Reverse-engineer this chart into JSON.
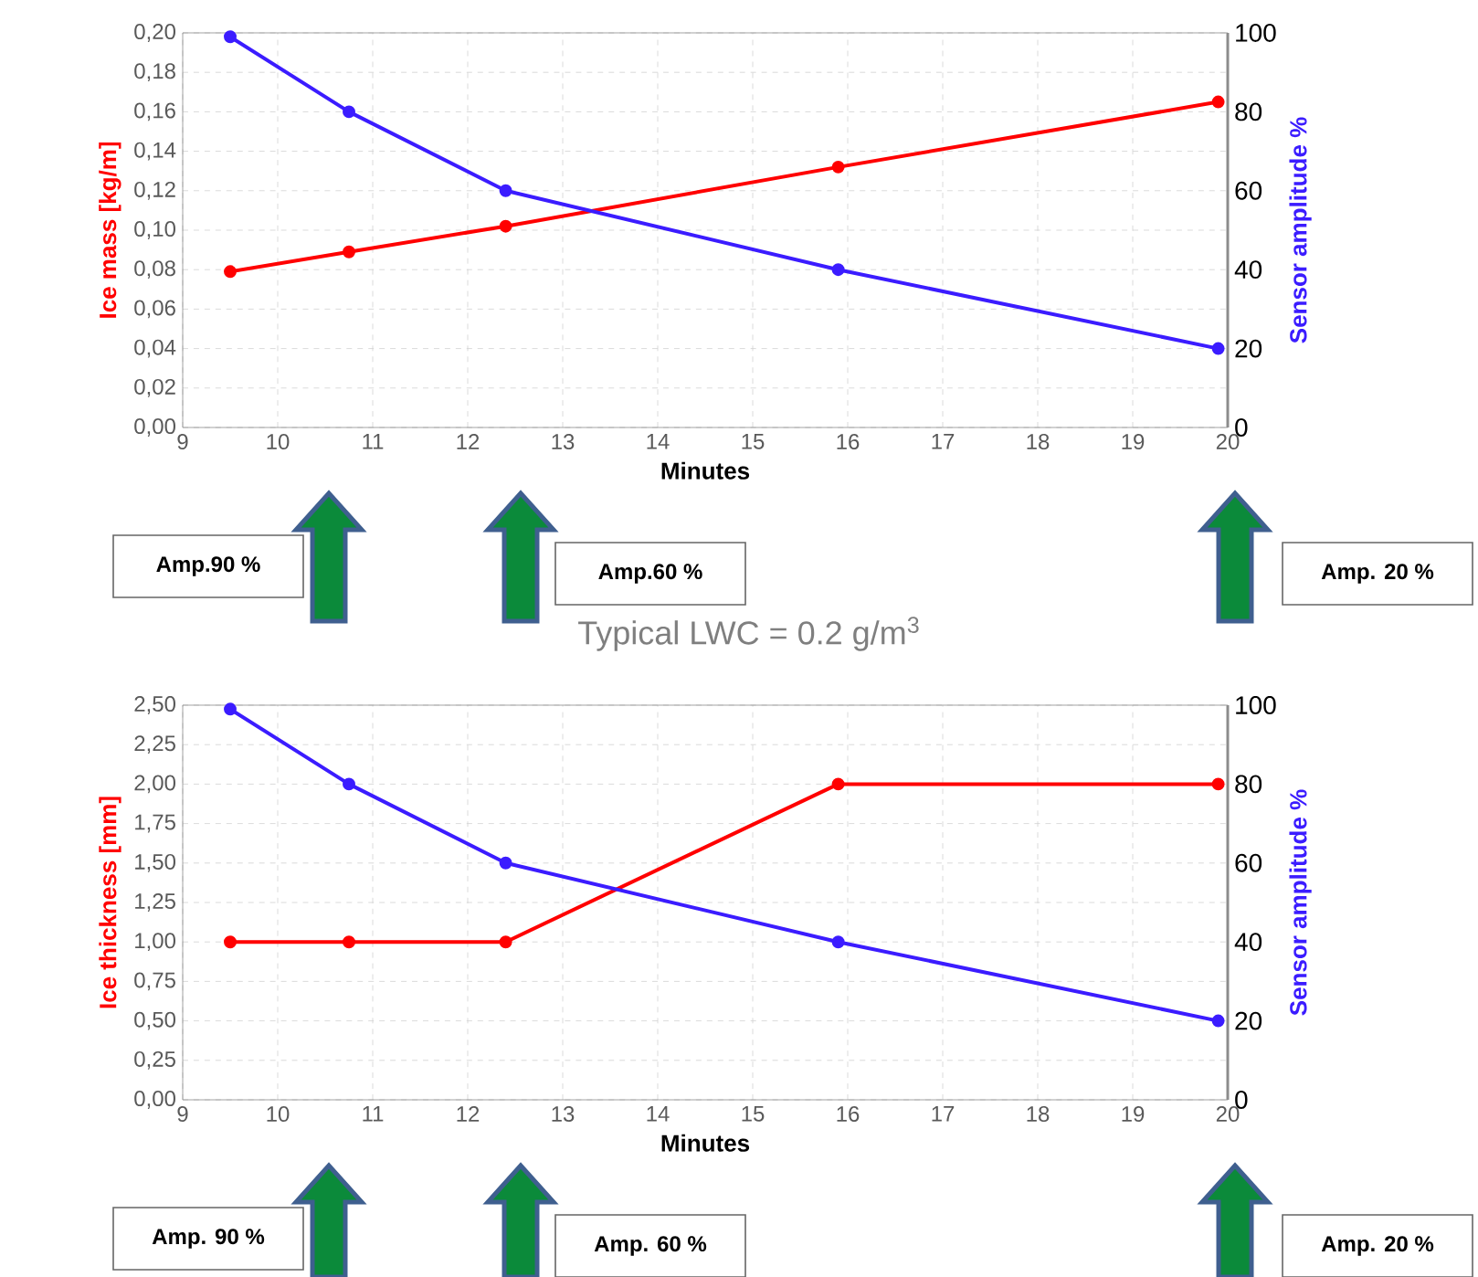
{
  "chart_data": [
    {
      "type": "line",
      "x": [
        9.5,
        10.75,
        12.4,
        15.9,
        19.9
      ],
      "xlim": [
        9,
        20
      ],
      "xticks": [
        9,
        10,
        11,
        12,
        13,
        14,
        15,
        16,
        17,
        18,
        19,
        20
      ],
      "ylim": [
        0,
        0.2
      ],
      "yticks": [
        {
          "value": 0,
          "label": "0,00"
        },
        {
          "value": 0.02,
          "label": "0,02"
        },
        {
          "value": 0.04,
          "label": "0,04"
        },
        {
          "value": 0.06,
          "label": "0,06"
        },
        {
          "value": 0.08,
          "label": "0,08"
        },
        {
          "value": 0.1,
          "label": "0,10"
        },
        {
          "value": 0.12,
          "label": "0,12"
        },
        {
          "value": 0.14,
          "label": "0,14"
        },
        {
          "value": 0.16,
          "label": "0,16"
        },
        {
          "value": 0.18,
          "label": "0,18"
        },
        {
          "value": 0.2,
          "label": "0,20"
        }
      ],
      "y2lim": [
        0,
        100
      ],
      "y2ticks": [
        0,
        20,
        40,
        60,
        80,
        100
      ],
      "xlabel": "Minutes",
      "ylabel": "Ice mass [kg/m]",
      "y2label": "Sensor amplitude %",
      "grid": true,
      "marker": "circle",
      "line_style": "solid",
      "series": [
        {
          "color": "#ff0000",
          "values": [
            0.079,
            0.089,
            0.102,
            0.132,
            0.165
          ]
        },
        {
          "color": "#3b1cff",
          "axis": "y2",
          "values": [
            99,
            80,
            60,
            40,
            20
          ]
        }
      ],
      "annotations": [
        "Amp.90 %",
        "Amp.60 %",
        "Amp. 20 %"
      ]
    },
    {
      "type": "line",
      "title": "Typical LWC = 0.2 g/m$^{3}$",
      "x": [
        9.5,
        10.75,
        12.4,
        15.9,
        19.9
      ],
      "xlim": [
        9,
        20
      ],
      "xticks": [
        9,
        10,
        11,
        12,
        13,
        14,
        15,
        16,
        17,
        18,
        19,
        20
      ],
      "ylim": [
        0,
        2.5
      ],
      "yticks": [
        {
          "value": 0,
          "label": "0,00"
        },
        {
          "value": 0.25,
          "label": "0,25"
        },
        {
          "value": 0.5,
          "label": "0,50"
        },
        {
          "value": 0.75,
          "label": "0,75"
        },
        {
          "value": 1,
          "label": "1,00"
        },
        {
          "value": 1.25,
          "label": "1,25"
        },
        {
          "value": 1.5,
          "label": "1,50"
        },
        {
          "value": 1.75,
          "label": "1,75"
        },
        {
          "value": 2,
          "label": "2,00"
        },
        {
          "value": 2.25,
          "label": "2,25"
        },
        {
          "value": 2.5,
          "label": "2,50"
        }
      ],
      "y2lim": [
        0,
        100
      ],
      "y2ticks": [
        0,
        20,
        40,
        60,
        80,
        100
      ],
      "xlabel": "Minutes",
      "ylabel": "Ice thickness [mm]",
      "y2label": "Sensor amplitude %",
      "grid": true,
      "marker": "circle",
      "line_style": "solid",
      "series": [
        {
          "color": "#ff0000",
          "values": [
            1.0,
            1.0,
            1.0,
            2.0,
            2.0
          ]
        },
        {
          "color": "#3b1cff",
          "axis": "y2",
          "values": [
            99,
            80,
            60,
            40,
            20
          ]
        }
      ],
      "annotations": [
        "Amp. 90 %",
        "Amp. 60 %",
        "Amp. 20 %"
      ]
    }
  ]
}
